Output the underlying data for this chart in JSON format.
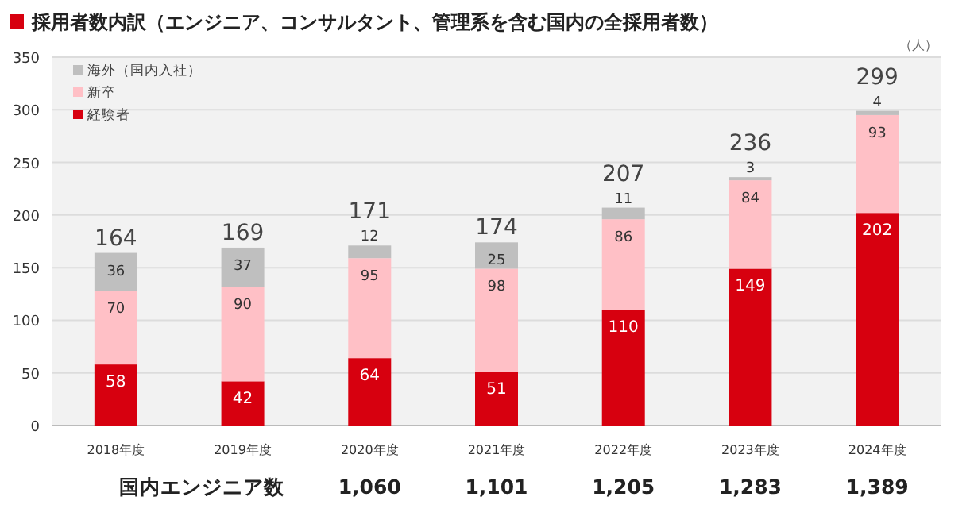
{
  "chart_data": {
    "type": "bar",
    "stacked": true,
    "title": "採用者数内訳（エンジニア、コンサルタント、管理系を含む国内の全採用者数）",
    "categories": [
      "2018年度",
      "2019年度",
      "2020年度",
      "2021年度",
      "2022年度",
      "2023年度",
      "2024年度"
    ],
    "series": [
      {
        "name": "経験者",
        "color": "#d7000f",
        "values": [
          58,
          42,
          64,
          51,
          110,
          149,
          202
        ]
      },
      {
        "name": "新卒",
        "color": "#ffc0c6",
        "values": [
          70,
          90,
          95,
          98,
          86,
          84,
          93
        ]
      },
      {
        "name": "海外（国内入社）",
        "color": "#bfbfbf",
        "values": [
          36,
          37,
          12,
          25,
          11,
          3,
          4
        ]
      }
    ],
    "totals": [
      "164",
      "169",
      "171",
      "174",
      "207",
      "236",
      "299"
    ],
    "data_labels": true,
    "ylim": [
      0,
      350
    ],
    "yticks": [
      0,
      50,
      100,
      150,
      200,
      250,
      300,
      350
    ],
    "grid": "y",
    "legend": "top left",
    "annotations": [
      "（人）",
      "国内エンジニア数",
      "1,060",
      "1,101",
      "1,205",
      "1,283",
      "1,389"
    ]
  }
}
